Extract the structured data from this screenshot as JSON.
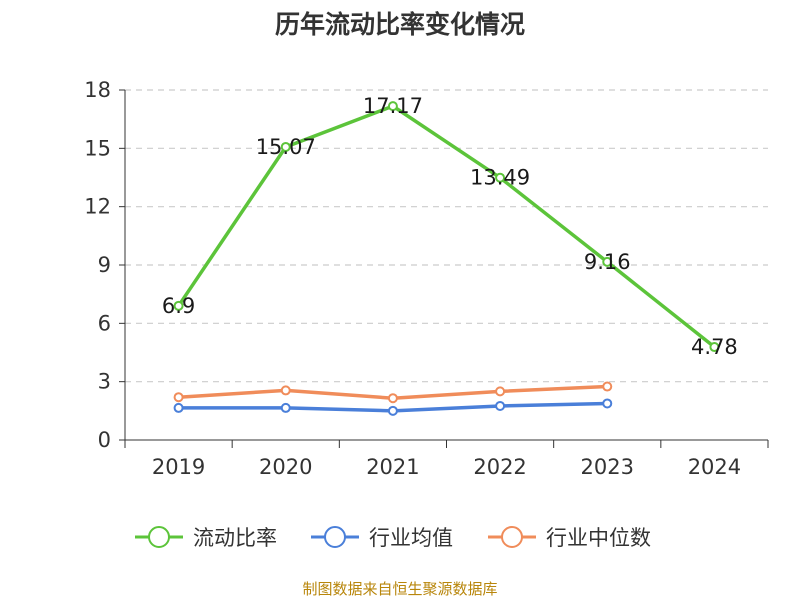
{
  "chart_data": {
    "type": "line",
    "title": "历年流动比率变化情况",
    "categories": [
      "2019",
      "2020",
      "2021",
      "2022",
      "2023",
      "2024"
    ],
    "ylim": [
      0,
      18
    ],
    "yticks": [
      0,
      3,
      6,
      9,
      12,
      15,
      18
    ],
    "grid": true,
    "legend_position": "bottom",
    "series": [
      {
        "name": "流动比率",
        "color": "#5cc43a",
        "values": [
          6.9,
          15.07,
          17.17,
          13.49,
          9.16,
          4.78
        ],
        "show_labels": true
      },
      {
        "name": "行业均值",
        "color": "#4a7fd9",
        "values": [
          1.65,
          1.65,
          1.5,
          1.75,
          1.88,
          null
        ],
        "show_labels": false
      },
      {
        "name": "行业中位数",
        "color": "#f08c5a",
        "values": [
          2.2,
          2.55,
          2.15,
          2.5,
          2.75,
          null
        ],
        "show_labels": false
      }
    ]
  },
  "source_text": "制图数据来自恒生聚源数据库"
}
